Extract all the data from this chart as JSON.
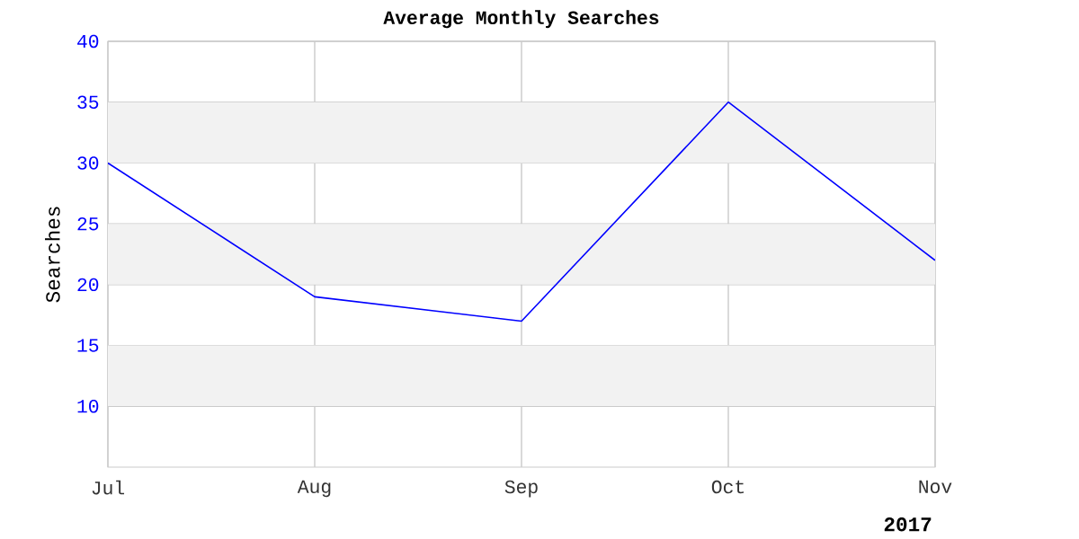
{
  "chart_data": {
    "type": "line",
    "title": "Average Monthly Searches",
    "ylabel": "Searches",
    "categories": [
      "Jul",
      "Aug",
      "Sep",
      "Oct",
      "Nov"
    ],
    "series": [
      {
        "color": "#0000ff",
        "values": [
          30,
          19,
          17,
          35,
          22
        ]
      }
    ],
    "ylim": [
      5,
      40
    ],
    "yticks": [
      10,
      15,
      20,
      25,
      30,
      35,
      40
    ],
    "grid": true,
    "marker": "none",
    "line_style": "solid",
    "bands": [
      {
        "axis": "y",
        "from": 10,
        "to": 15,
        "color": "#f2f2f2"
      },
      {
        "axis": "y",
        "from": 20,
        "to": 25,
        "color": "#f2f2f2"
      },
      {
        "axis": "y",
        "from": 30,
        "to": 35,
        "color": "#f2f2f2"
      }
    ],
    "annotations": [
      "2017"
    ]
  }
}
